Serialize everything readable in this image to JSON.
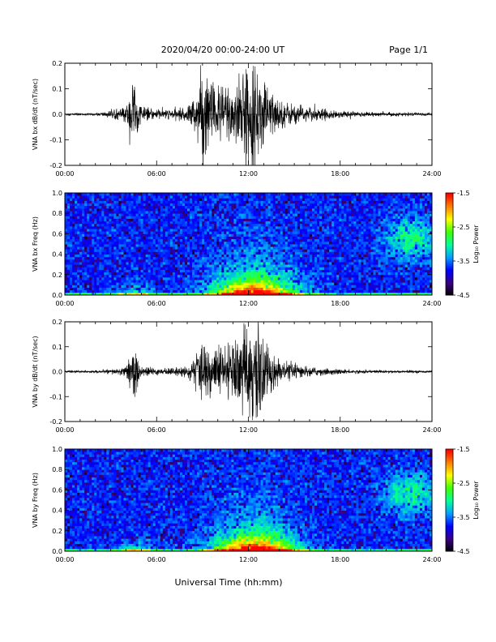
{
  "header": {
    "title": "2020/04/20  00:00-24:00 UT",
    "page": "Page 1/1"
  },
  "footer": {
    "xlabel": "Universal Time (hh:mm)"
  },
  "colors": {
    "waveform": "#000000",
    "colormap": [
      "#000000",
      "#3a0080",
      "#0000ff",
      "#00a0ff",
      "#00ffa0",
      "#40ff00",
      "#ffff00",
      "#ff8000",
      "#ff0000"
    ]
  },
  "chart_data": [
    {
      "type": "line",
      "ylabel": "VNA bx dB/dt (nT/sec)",
      "xlim_hours": [
        0,
        24
      ],
      "ylim": [
        -0.2,
        0.2
      ],
      "yticks": [
        "0.2",
        "0.1",
        "0.0",
        "-0.1",
        "-0.2"
      ],
      "xticks": [
        "00:00",
        "06:00",
        "12:00",
        "18:00",
        "24:00"
      ],
      "envelope": {
        "x_hours": [
          0,
          2,
          3,
          4,
          4.2,
          4.5,
          4.8,
          5,
          6,
          7,
          8,
          8.5,
          9,
          10,
          11,
          11.5,
          12,
          12.5,
          13,
          13.5,
          14,
          15,
          16,
          17,
          18,
          19,
          20,
          21,
          22,
          23,
          24
        ],
        "amplitude": [
          0.005,
          0.005,
          0.015,
          0.03,
          0.08,
          0.17,
          0.06,
          0.03,
          0.02,
          0.02,
          0.03,
          0.08,
          0.19,
          0.12,
          0.14,
          0.16,
          0.2,
          0.2,
          0.14,
          0.1,
          0.06,
          0.04,
          0.03,
          0.02,
          0.015,
          0.01,
          0.01,
          0.008,
          0.007,
          0.006,
          0.006
        ]
      }
    },
    {
      "type": "heatmap",
      "ylabel": "VNA bx Freq (Hz)",
      "xlim_hours": [
        0,
        24
      ],
      "ylim": [
        0.0,
        1.0
      ],
      "yticks": [
        "1.0",
        "0.8",
        "0.6",
        "0.4",
        "0.2",
        "0.0"
      ],
      "xticks": [
        "00:00",
        "06:00",
        "12:00",
        "18:00",
        "24:00"
      ],
      "colorbar": {
        "label": "Log₁₀ Power",
        "ticks": [
          "-1.5",
          "-2.5",
          "-3.5",
          "-4.5"
        ],
        "range": [
          -4.5,
          -1.5
        ]
      }
    },
    {
      "type": "line",
      "ylabel": "VNA by dB/dt (nT/sec)",
      "xlim_hours": [
        0,
        24
      ],
      "ylim": [
        -0.2,
        0.2
      ],
      "yticks": [
        "0.2",
        "0.1",
        "0.0",
        "-0.1",
        "-0.2"
      ],
      "xticks": [
        "00:00",
        "06:00",
        "12:00",
        "18:00",
        "24:00"
      ],
      "envelope": {
        "x_hours": [
          0,
          2,
          3,
          4,
          4.2,
          4.5,
          4.8,
          5,
          6,
          7,
          8,
          8.5,
          9,
          10,
          11,
          11.5,
          12,
          12.5,
          13,
          13.5,
          14,
          15,
          16,
          17,
          18,
          19,
          20,
          21,
          22,
          23,
          24
        ],
        "amplitude": [
          0.005,
          0.005,
          0.01,
          0.02,
          0.06,
          0.13,
          0.05,
          0.02,
          0.015,
          0.015,
          0.025,
          0.06,
          0.12,
          0.1,
          0.13,
          0.15,
          0.2,
          0.2,
          0.13,
          0.09,
          0.05,
          0.03,
          0.02,
          0.015,
          0.01,
          0.008,
          0.007,
          0.006,
          0.006,
          0.005,
          0.005
        ]
      }
    },
    {
      "type": "heatmap",
      "ylabel": "VNA by Freq (Hz)",
      "xlim_hours": [
        0,
        24
      ],
      "ylim": [
        0.0,
        1.0
      ],
      "yticks": [
        "1.0",
        "0.8",
        "0.6",
        "0.4",
        "0.2",
        "0.0"
      ],
      "xticks": [
        "00:00",
        "06:00",
        "12:00",
        "18:00",
        "24:00"
      ],
      "colorbar": {
        "label": "Log₁₀ Power",
        "ticks": [
          "-1.5",
          "-2.5",
          "-3.5",
          "-4.5"
        ],
        "range": [
          -4.5,
          -1.5
        ]
      }
    }
  ]
}
